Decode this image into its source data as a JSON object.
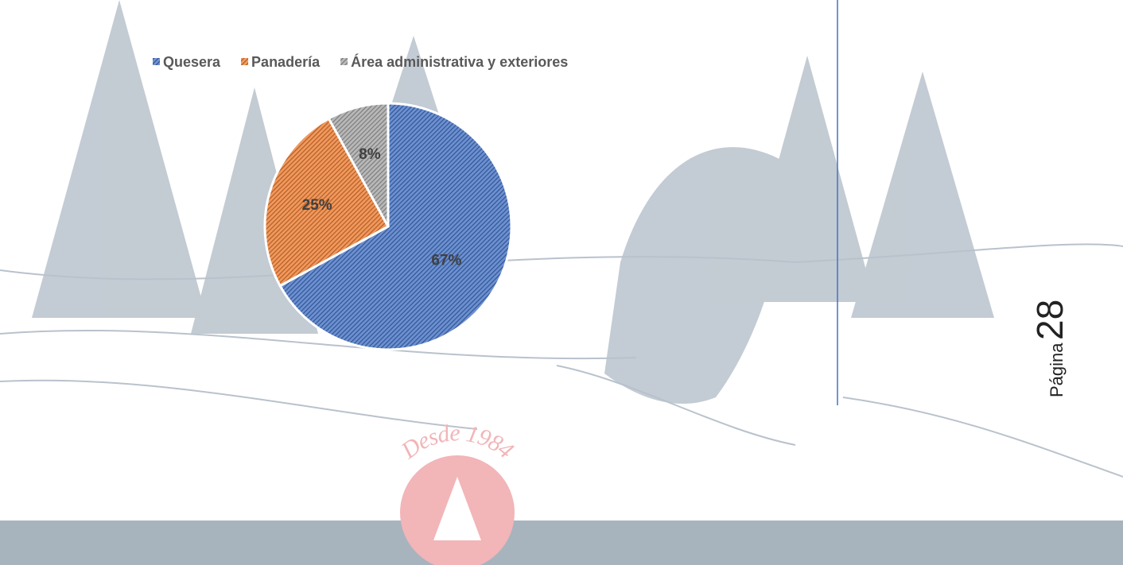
{
  "chart_data": {
    "type": "pie",
    "categories": [
      "Quesera",
      "Panadería",
      "Área administrativa y exteriores"
    ],
    "values": [
      67,
      25,
      8
    ],
    "value_labels": [
      "67%",
      "25%",
      "8%"
    ],
    "colors": [
      "#4472c4",
      "#ed7d31",
      "#a5a5a5"
    ],
    "legend": "top"
  },
  "footer": {
    "page_label": "Página",
    "page_number": "28",
    "logo_text": "Desde 1984"
  }
}
